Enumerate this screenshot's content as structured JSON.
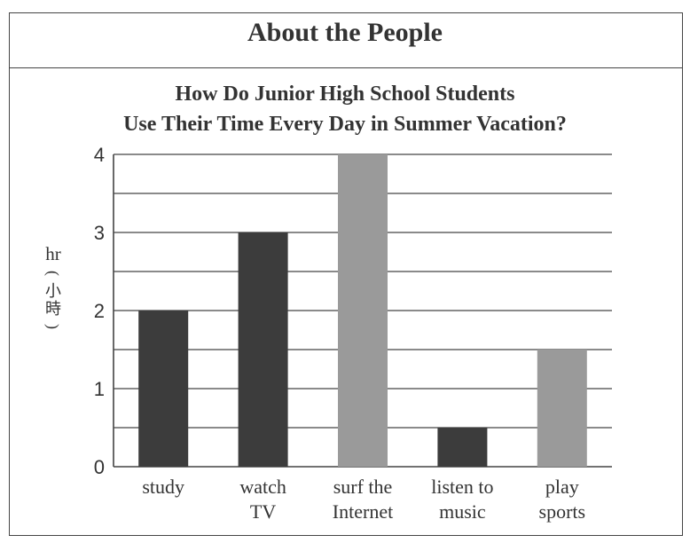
{
  "header": {
    "title": "About the People"
  },
  "chart_data": {
    "type": "bar",
    "title_lines": [
      "How Do Junior High School Students",
      "Use Their Time Every Day in Summer Vacation?"
    ],
    "ylabel": "hr",
    "ylabel_note": [
      "(",
      "小",
      "時",
      ")"
    ],
    "ylim": [
      0,
      4
    ],
    "yticks": [
      "0",
      "1",
      "2",
      "3",
      "4"
    ],
    "gridlines": "every 0.5",
    "categories": [
      [
        "study"
      ],
      [
        "watch",
        "TV"
      ],
      [
        "surf the",
        "Internet"
      ],
      [
        "listen to",
        "music"
      ],
      [
        "play",
        "sports"
      ]
    ],
    "values": [
      2,
      3,
      4,
      0.5,
      1.5
    ],
    "bar_colors": [
      "#3c3c3c",
      "#3c3c3c",
      "#9a9a9a",
      "#3c3c3c",
      "#9a9a9a"
    ],
    "grid_color": "#444444"
  }
}
